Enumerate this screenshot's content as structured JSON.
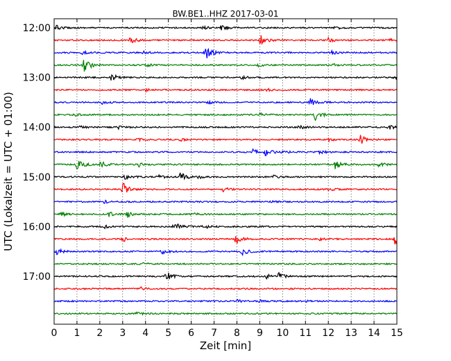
{
  "chart_data": {
    "type": "line",
    "title": "BW.BE1..HHZ 2017-03-01",
    "xlabel": "Zeit  [min]",
    "ylabel": "UTC (Lokalzeit = UTC + 01:00)",
    "xlim": [
      0,
      15
    ],
    "x_ticks": [
      0,
      1,
      2,
      3,
      4,
      5,
      6,
      7,
      8,
      9,
      10,
      11,
      12,
      13,
      14,
      15
    ],
    "y_tick_labels": [
      "12:00",
      "13:00",
      "14:00",
      "15:00",
      "16:00",
      "17:00"
    ],
    "grid": "vertical dotted",
    "trace_colors": [
      "#000000",
      "#ff0000",
      "#0000ff",
      "#008000"
    ],
    "series": [
      {
        "start": "12:00",
        "events": [
          [
            0.1,
            3
          ],
          [
            6.5,
            2
          ],
          [
            7.3,
            4
          ],
          [
            12.3,
            2
          ]
        ]
      },
      {
        "start": "12:15",
        "events": [
          [
            3.3,
            5
          ],
          [
            9.0,
            8
          ],
          [
            12.0,
            3
          ],
          [
            14.6,
            2
          ]
        ]
      },
      {
        "start": "12:30",
        "events": [
          [
            6.6,
            12
          ],
          [
            3.9,
            2
          ],
          [
            12.1,
            3
          ],
          [
            1.2,
            2
          ]
        ]
      },
      {
        "start": "12:45",
        "events": [
          [
            1.3,
            12
          ],
          [
            4.0,
            2
          ],
          [
            8.9,
            2
          ],
          [
            12.2,
            2
          ]
        ]
      },
      {
        "start": "13:00",
        "events": [
          [
            2.5,
            6
          ],
          [
            8.2,
            2
          ],
          [
            14.9,
            3
          ]
        ]
      },
      {
        "start": "13:15",
        "events": [
          [
            4.0,
            2
          ],
          [
            9.3,
            2
          ]
        ]
      },
      {
        "start": "13:30",
        "events": [
          [
            11.2,
            6
          ],
          [
            2.1,
            2
          ],
          [
            6.7,
            2
          ]
        ]
      },
      {
        "start": "13:45",
        "events": [
          [
            11.4,
            8
          ],
          [
            0.8,
            2
          ],
          [
            9.0,
            2
          ]
        ]
      },
      {
        "start": "14:00",
        "events": [
          [
            1.1,
            2
          ],
          [
            2.8,
            2
          ],
          [
            10.7,
            3
          ],
          [
            14.6,
            4
          ]
        ]
      },
      {
        "start": "14:15",
        "events": [
          [
            13.4,
            7
          ],
          [
            3.6,
            3
          ],
          [
            5.5,
            2
          ],
          [
            12.0,
            2
          ]
        ]
      },
      {
        "start": "14:30",
        "events": [
          [
            8.7,
            4
          ],
          [
            9.2,
            6
          ],
          [
            10.0,
            2
          ],
          [
            11.6,
            2
          ]
        ]
      },
      {
        "start": "14:45",
        "events": [
          [
            1.0,
            10
          ],
          [
            2.0,
            5
          ],
          [
            3.7,
            4
          ],
          [
            12.3,
            6
          ],
          [
            14.2,
            3
          ]
        ]
      },
      {
        "start": "15:00",
        "events": [
          [
            5.5,
            7
          ],
          [
            3.1,
            4
          ],
          [
            6.2,
            4
          ],
          [
            4.5,
            3
          ],
          [
            9.6,
            2
          ]
        ]
      },
      {
        "start": "15:15",
        "events": [
          [
            3.0,
            10
          ],
          [
            7.4,
            4
          ],
          [
            12.0,
            2
          ]
        ]
      },
      {
        "start": "15:30",
        "events": [
          [
            2.2,
            2
          ],
          [
            9.5,
            1
          ]
        ]
      },
      {
        "start": "15:45",
        "events": [
          [
            2.4,
            3
          ],
          [
            3.2,
            4
          ],
          [
            0.3,
            3
          ],
          [
            6.0,
            2
          ]
        ]
      },
      {
        "start": "16:00",
        "events": [
          [
            5.2,
            8
          ],
          [
            6.5,
            3
          ],
          [
            2.2,
            2
          ]
        ]
      },
      {
        "start": "16:15",
        "events": [
          [
            7.9,
            9
          ],
          [
            14.9,
            10
          ],
          [
            3.0,
            4
          ],
          [
            11.6,
            2
          ]
        ]
      },
      {
        "start": "16:30",
        "events": [
          [
            8.2,
            6
          ],
          [
            4.7,
            4
          ],
          [
            0.1,
            5
          ]
        ]
      },
      {
        "start": "16:45",
        "events": [
          [
            3.9,
            1
          ]
        ]
      },
      {
        "start": "17:00",
        "events": [
          [
            4.9,
            7
          ],
          [
            9.8,
            5
          ],
          [
            9.3,
            3
          ]
        ]
      },
      {
        "start": "17:15",
        "events": [
          [
            3.8,
            2
          ],
          [
            10.3,
            1
          ]
        ]
      },
      {
        "start": "17:30",
        "events": [
          [
            8.0,
            2
          ],
          [
            9.0,
            2
          ],
          [
            11.0,
            1
          ]
        ]
      },
      {
        "start": "17:45",
        "events": [
          [
            3.6,
            3
          ]
        ]
      }
    ]
  }
}
